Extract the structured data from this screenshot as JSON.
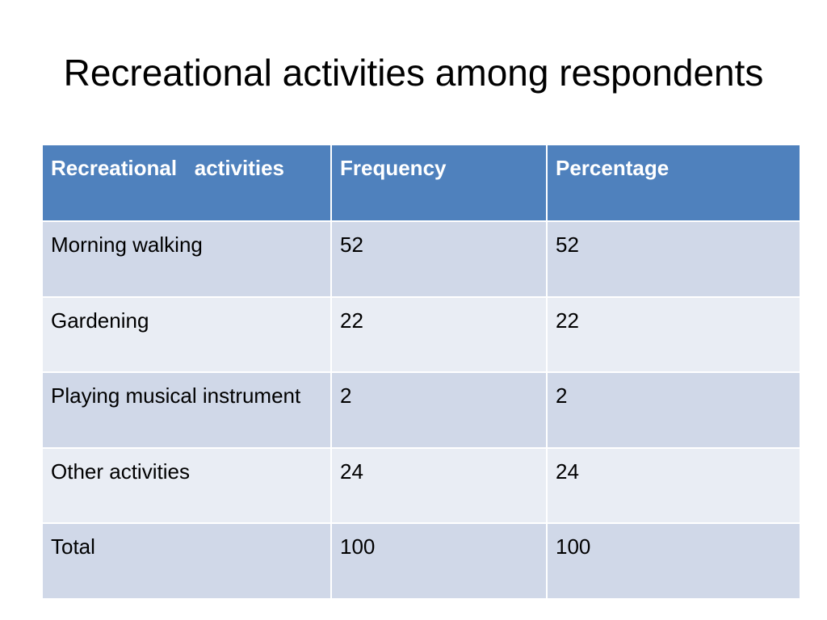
{
  "title": "Recreational activities among respondents",
  "table": {
    "headers": [
      "Recreational   activities",
      "Frequency",
      "Percentage"
    ],
    "rows": [
      [
        "Morning walking",
        "52",
        "52"
      ],
      [
        "Gardening",
        "22",
        "22"
      ],
      [
        "Playing musical instrument",
        "2",
        "2"
      ],
      [
        "Other activities",
        "24",
        "24"
      ],
      [
        "Total",
        "100",
        "100"
      ]
    ]
  },
  "colors": {
    "header_fill": "#4f81bd",
    "row_band_dark": "#d0d8e8",
    "row_band_light": "#e9edf4"
  }
}
